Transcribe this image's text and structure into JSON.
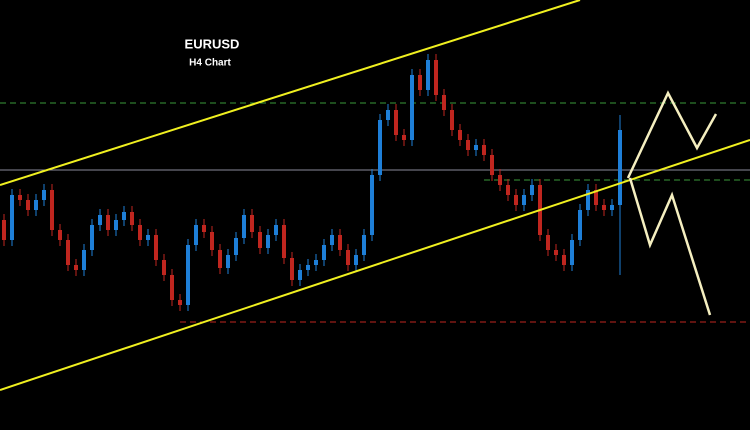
{
  "chart_data": {
    "type": "candlestick",
    "title": "EURUSD",
    "subtitle": "H4 Chart",
    "up_color": "#1e7fd8",
    "down_color": "#c0261f",
    "xlim": [
      -0.5,
      93.25
    ],
    "ylim": [
      1.077,
      1.12
    ],
    "open": [
      1.098,
      1.096,
      1.1005,
      1.1,
      1.099,
      1.1,
      1.101,
      1.097,
      1.096,
      1.0935,
      1.093,
      1.095,
      1.0975,
      1.0985,
      1.097,
      1.098,
      1.0988,
      1.0975,
      1.096,
      1.0965,
      1.094,
      1.0925,
      1.09,
      1.0895,
      1.0955,
      1.0975,
      1.0968,
      1.095,
      1.0932,
      1.0945,
      1.0962,
      1.0985,
      1.0968,
      1.0952,
      1.0965,
      1.0975,
      1.0942,
      1.092,
      1.093,
      1.0935,
      1.094,
      1.0955,
      1.0965,
      1.095,
      1.0935,
      1.0945,
      1.0965,
      1.1025,
      1.108,
      1.109,
      1.1065,
      1.106,
      1.1125,
      1.111,
      1.114,
      1.1105,
      1.109,
      1.107,
      1.106,
      1.105,
      1.1055,
      1.1045,
      1.1025,
      1.1015,
      1.1005,
      1.0995,
      1.1005,
      1.1015,
      1.0965,
      1.095,
      1.0945,
      1.0935,
      1.096,
      1.099,
      1.101,
      1.0995,
      1.099,
      1.0995
    ],
    "high": [
      1.0986,
      1.1011,
      1.1011,
      1.1006,
      1.1006,
      1.1016,
      1.1016,
      1.0976,
      1.0966,
      1.0941,
      1.0956,
      1.0981,
      1.0991,
      1.0991,
      1.0986,
      1.0994,
      1.0994,
      1.0981,
      1.0971,
      1.0971,
      1.0946,
      1.0931,
      1.0906,
      1.0961,
      1.0981,
      1.0981,
      1.0974,
      1.0956,
      1.0951,
      1.0968,
      1.0991,
      1.0991,
      1.0974,
      1.0971,
      1.0981,
      1.0981,
      1.0948,
      1.0936,
      1.0941,
      1.0946,
      1.0961,
      1.0971,
      1.0971,
      1.0956,
      1.0951,
      1.0971,
      1.1031,
      1.1086,
      1.1096,
      1.1096,
      1.1071,
      1.1131,
      1.1131,
      1.1146,
      1.1146,
      1.1111,
      1.1096,
      1.1076,
      1.1066,
      1.1061,
      1.1061,
      1.1051,
      1.1031,
      1.1021,
      1.1011,
      1.1011,
      1.1021,
      1.1021,
      1.0971,
      1.0956,
      1.0951,
      1.0966,
      1.0996,
      1.1016,
      1.1016,
      1.1001,
      1.1001,
      1.1085
    ],
    "low": [
      1.0954,
      1.0954,
      1.0994,
      1.0984,
      1.0984,
      1.0994,
      1.0964,
      1.0954,
      1.0929,
      1.0924,
      1.0924,
      1.0944,
      1.0969,
      1.0964,
      1.0964,
      1.0974,
      1.0969,
      1.0954,
      1.0954,
      1.0934,
      1.0919,
      1.0894,
      1.0889,
      1.0889,
      1.0949,
      1.0962,
      1.0944,
      1.0926,
      1.0926,
      1.0939,
      1.0956,
      1.0962,
      1.0946,
      1.0946,
      1.0959,
      1.0936,
      1.0914,
      1.0914,
      1.0924,
      1.0929,
      1.0934,
      1.0949,
      1.0944,
      1.0929,
      1.0929,
      1.0939,
      1.0959,
      1.1019,
      1.1074,
      1.1059,
      1.1054,
      1.1054,
      1.1104,
      1.1104,
      1.1099,
      1.1084,
      1.1064,
      1.1054,
      1.1044,
      1.1044,
      1.1039,
      1.1019,
      1.1009,
      1.0999,
      1.0989,
      1.0989,
      1.0999,
      1.0959,
      1.0944,
      1.0939,
      1.0929,
      1.0929,
      1.0954,
      1.0984,
      1.0989,
      1.0984,
      1.0984,
      1.0925
    ],
    "close": [
      1.096,
      1.1005,
      1.1,
      1.099,
      1.1,
      1.101,
      1.097,
      1.096,
      1.0935,
      1.093,
      1.095,
      1.0975,
      1.0985,
      1.097,
      1.098,
      1.0988,
      1.0975,
      1.096,
      1.0965,
      1.094,
      1.0925,
      1.09,
      1.0895,
      1.0955,
      1.0975,
      1.0968,
      1.095,
      1.0932,
      1.0945,
      1.0962,
      1.0985,
      1.0968,
      1.0952,
      1.0965,
      1.0975,
      1.0942,
      1.092,
      1.093,
      1.0935,
      1.094,
      1.0955,
      1.0965,
      1.095,
      1.0935,
      1.0945,
      1.0965,
      1.1025,
      1.108,
      1.109,
      1.1065,
      1.106,
      1.1125,
      1.111,
      1.114,
      1.1105,
      1.109,
      1.107,
      1.106,
      1.105,
      1.1055,
      1.1045,
      1.1025,
      1.1015,
      1.1005,
      1.0995,
      1.1005,
      1.1015,
      1.0965,
      1.095,
      1.0945,
      1.0935,
      1.096,
      1.099,
      1.101,
      1.0995,
      1.099,
      1.0995,
      1.107
    ],
    "levels": [
      {
        "value": 1.1097,
        "color": "#3a9a3a",
        "style": "dashed",
        "x_start": -0.5
      },
      {
        "value": 1.103,
        "color": "#8a8a9a",
        "style": "solid",
        "x_start": -0.5
      },
      {
        "value": 1.102,
        "color": "#3a9a3a",
        "style": "dashed",
        "x_start": 60
      },
      {
        "value": 1.0878,
        "color": "#c0261f",
        "style": "dashed",
        "x_start": 22
      }
    ],
    "trendlines": [
      {
        "color": "#f0f020",
        "x": [
          -0.5,
          72
        ],
        "values": [
          1.1015,
          1.12
        ]
      },
      {
        "color": "#f0f020",
        "x": [
          -0.5,
          93.25
        ],
        "values": [
          1.081,
          1.106
        ]
      }
    ],
    "projections": [
      {
        "color": "#f5efc0",
        "x": [
          78,
          83,
          86.625,
          89
        ],
        "values": [
          1.1022,
          1.1107,
          1.1052,
          1.1086
        ]
      },
      {
        "color": "#f5efc0",
        "x": [
          78.25,
          80.75,
          83.5,
          88.25
        ],
        "values": [
          1.1022,
          1.0955,
          1.1005,
          1.0885
        ]
      }
    ]
  }
}
